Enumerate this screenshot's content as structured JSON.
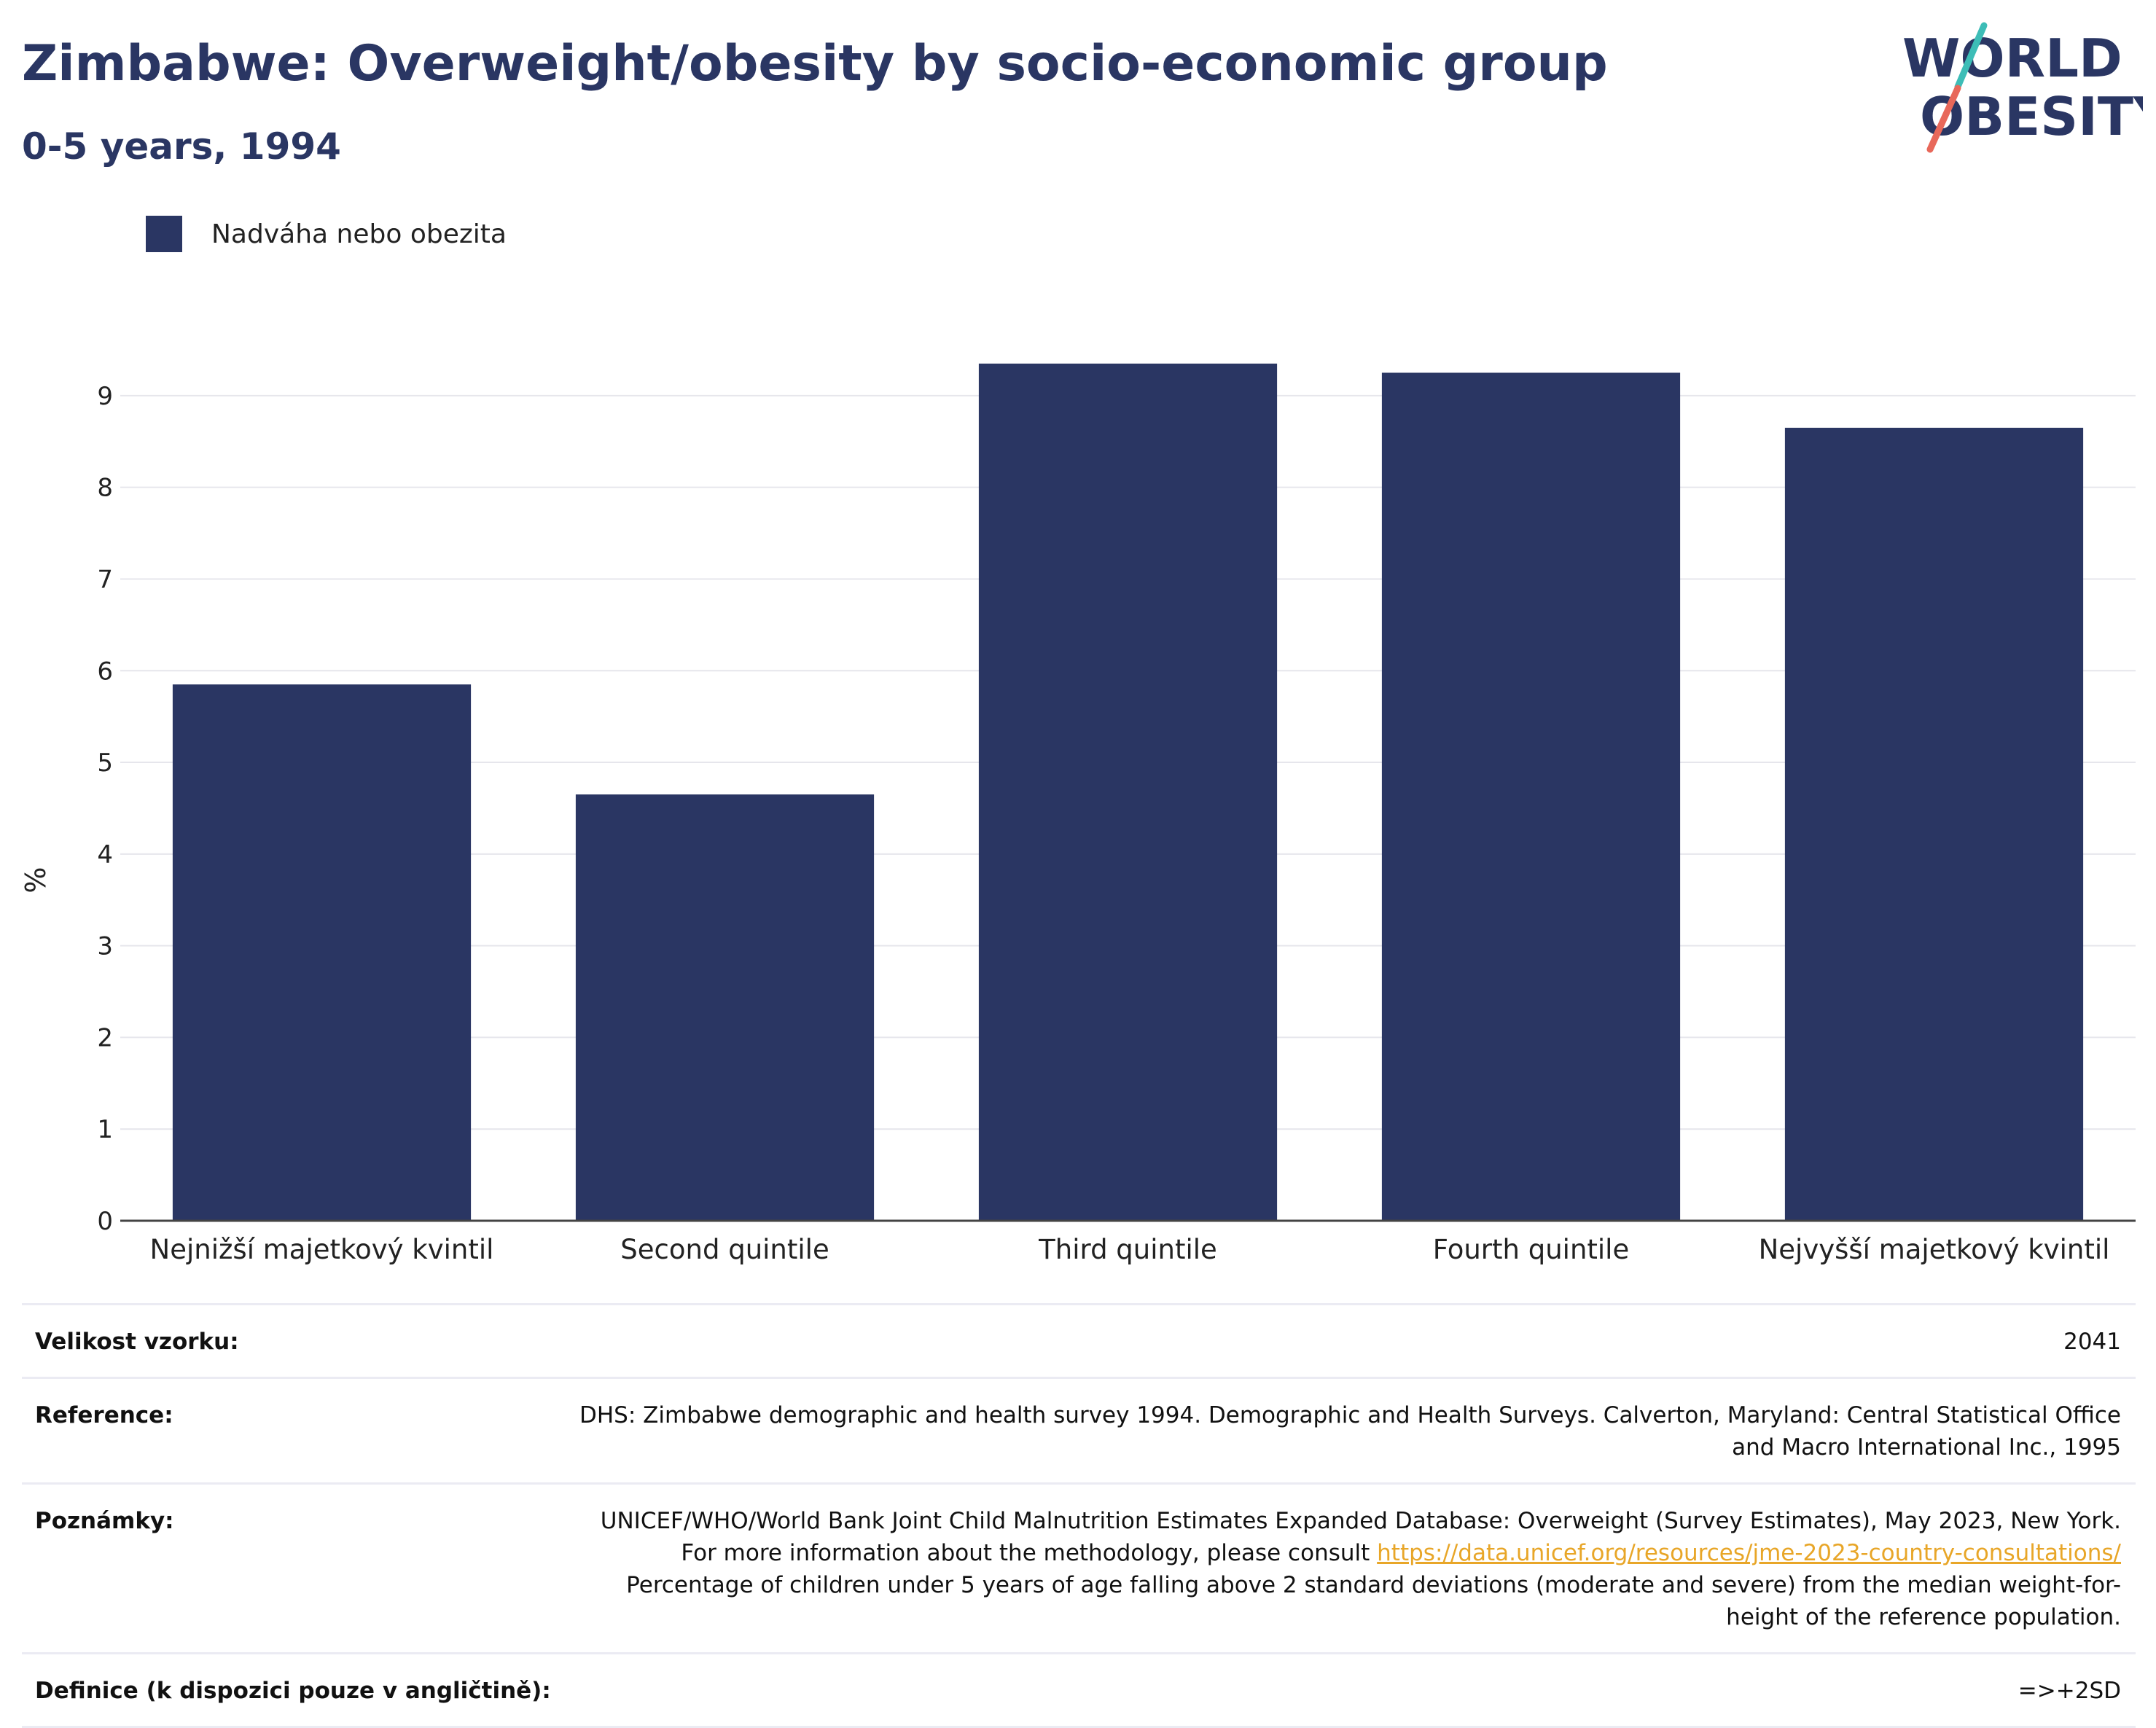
{
  "header": {
    "title": "Zimbabwe: Overweight/obesity by socio-economic group",
    "subtitle": "0-5 years, 1994",
    "logo_line1": "WORLD",
    "logo_line2": "OBESITY"
  },
  "colors": {
    "bar": "#2a3663",
    "title": "#2a3663",
    "link": "#e8a628",
    "logo_teal": "#3dbdb7",
    "logo_coral": "#e8685a"
  },
  "legend": {
    "label": "Nadváha nebo obezita"
  },
  "chart_data": {
    "type": "bar",
    "categories": [
      "Nejnižší majetkový kvintil",
      "Second quintile",
      "Third quintile",
      "Fourth quintile",
      "Nejvyšší majetkový kvintil"
    ],
    "series": [
      {
        "name": "Nadváha nebo obezita",
        "values": [
          5.85,
          4.65,
          9.35,
          9.25,
          8.65
        ]
      }
    ],
    "ylabel": "%",
    "ylim": [
      0,
      9.5
    ],
    "yticks": [
      0,
      1,
      2,
      3,
      4,
      5,
      6,
      7,
      8,
      9
    ],
    "grid": true,
    "legend_position": "top-left"
  },
  "info": {
    "sample_label": "Velikost vzorku:",
    "sample_value": "2041",
    "reference_label": "Reference:",
    "reference_value": "DHS: Zimbabwe demographic and health survey 1994. Demographic and Health Surveys. Calverton, Maryland: Central Statistical Office and Macro International Inc., 1995",
    "notes_label": "Poznámky:",
    "notes_text_1": "UNICEF/WHO/World Bank Joint Child Malnutrition Estimates Expanded Database: Overweight (Survey Estimates), May 2023, New York. For more information about the methodology, please consult",
    "notes_link": "https://data.unicef.org/resources/jme-2023-country-consultations/",
    "notes_text_2": "Percentage of children under 5 years of age falling above 2 standard deviations (moderate and severe) from the median weight-for-height of the reference population.",
    "definition_label": "Definice (k dispozici pouze v angličtině):",
    "definition_value": "=>+2SD"
  }
}
